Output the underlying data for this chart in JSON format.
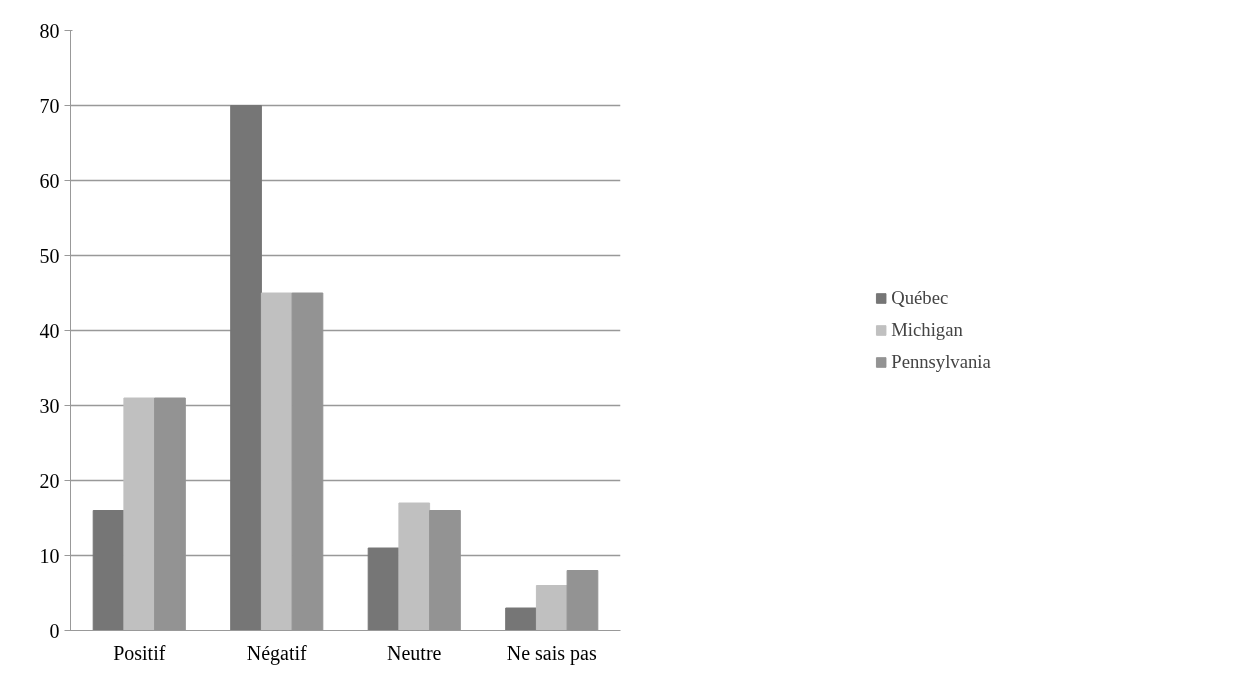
{
  "chart_data": {
    "type": "bar",
    "categories": [
      "Positif",
      "Négatif",
      "Neutre",
      "Ne sais pas"
    ],
    "series": [
      {
        "name": "Québec",
        "color": "#767676",
        "values": [
          16,
          70,
          11,
          3
        ]
      },
      {
        "name": "Michigan",
        "color": "#c0c0c0",
        "values": [
          31,
          45,
          17,
          6
        ]
      },
      {
        "name": "Pennsylvania",
        "color": "#939393",
        "values": [
          31,
          45,
          16,
          8
        ]
      }
    ],
    "ylim": [
      0,
      80
    ],
    "yticks": [
      0,
      10,
      20,
      30,
      40,
      50,
      60,
      70,
      80
    ],
    "grid": "y",
    "legend": "right"
  }
}
